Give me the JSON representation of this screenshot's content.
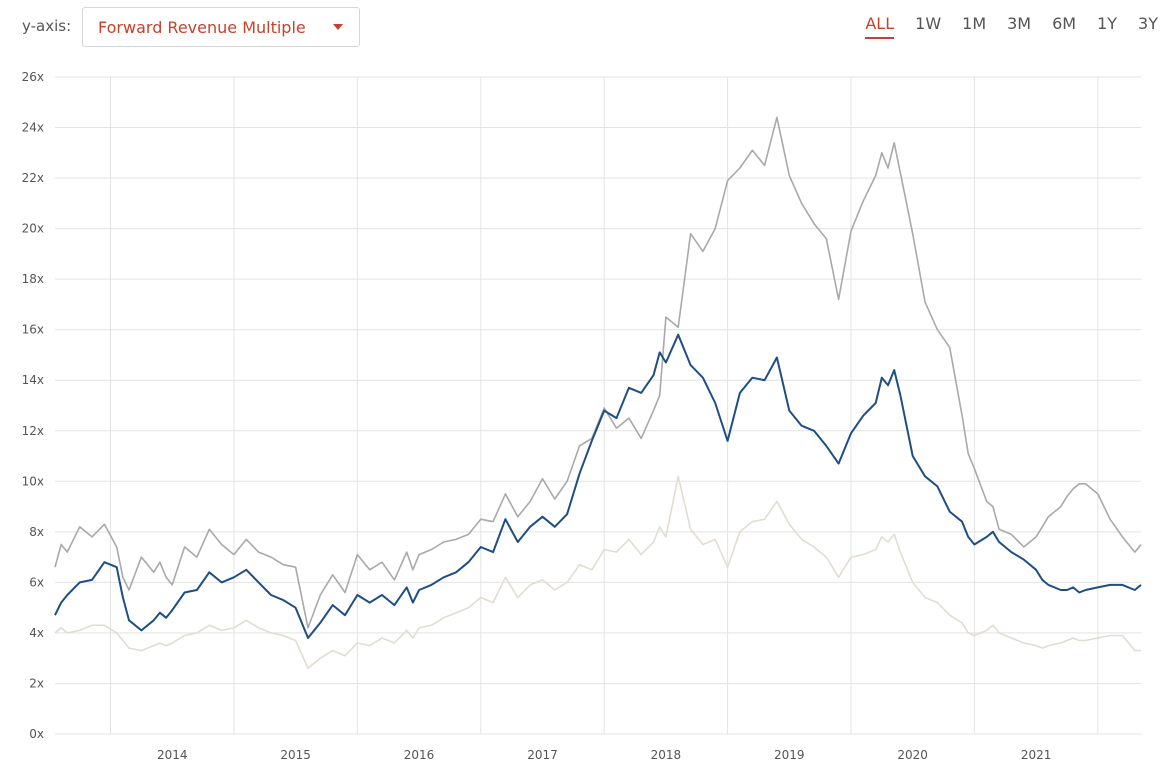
{
  "toolbar": {
    "yaxis_label": "y-axis:",
    "metric_selected": "Forward Revenue Multiple",
    "ranges": [
      "ALL",
      "1W",
      "1M",
      "3M",
      "6M",
      "1Y",
      "3Y"
    ],
    "active_range": "ALL"
  },
  "colors": {
    "accent": "#c8412b",
    "series_main": "#1f4e85",
    "series_upper": "#a9a9a9",
    "series_lower": "#e2dcd3",
    "grid": "#e3e3e3"
  },
  "chart_data": {
    "type": "line",
    "title": "",
    "xlabel": "",
    "ylabel": "",
    "ylim": [
      0,
      26
    ],
    "xlim": [
      2013.05,
      2021.85
    ],
    "grid": true,
    "y_ticks": [
      0,
      2,
      4,
      6,
      8,
      10,
      12,
      14,
      16,
      18,
      20,
      22,
      24,
      26
    ],
    "y_tick_suffix": "x",
    "x_ticks": [
      "2014",
      "2015",
      "2016",
      "2017",
      "2018",
      "2019",
      "2020",
      "2021"
    ],
    "series": [
      {
        "key": "upper",
        "x": [
          2013.05,
          2013.1,
          2013.15,
          2013.25,
          2013.35,
          2013.45,
          2013.55,
          2013.6,
          2013.65,
          2013.75,
          2013.85,
          2013.9,
          2013.95,
          2014.0,
          2014.1,
          2014.2,
          2014.3,
          2014.4,
          2014.5,
          2014.6,
          2014.7,
          2014.8,
          2014.9,
          2015.0,
          2015.1,
          2015.2,
          2015.3,
          2015.4,
          2015.5,
          2015.6,
          2015.7,
          2015.8,
          2015.9,
          2015.95,
          2016.0,
          2016.1,
          2016.2,
          2016.3,
          2016.4,
          2016.5,
          2016.6,
          2016.7,
          2016.8,
          2016.9,
          2017.0,
          2017.1,
          2017.2,
          2017.3,
          2017.4,
          2017.5,
          2017.6,
          2017.7,
          2017.8,
          2017.9,
          2017.95,
          2018.0,
          2018.1,
          2018.2,
          2018.3,
          2018.4,
          2018.5,
          2018.6,
          2018.7,
          2018.8,
          2018.9,
          2019.0,
          2019.1,
          2019.2,
          2019.3,
          2019.4,
          2019.5,
          2019.6,
          2019.7,
          2019.75,
          2019.8,
          2019.85,
          2019.9,
          2020.0,
          2020.1,
          2020.2,
          2020.3,
          2020.4,
          2020.45,
          2020.5,
          2020.6,
          2020.65,
          2020.7,
          2020.8,
          2020.9,
          2021.0,
          2021.05,
          2021.1,
          2021.2,
          2021.25,
          2021.3,
          2021.35,
          2021.4,
          2021.5,
          2021.6,
          2021.7,
          2021.8,
          2021.85
        ],
        "y": [
          6.6,
          7.5,
          7.2,
          8.2,
          7.8,
          8.3,
          7.4,
          6.2,
          5.7,
          7.0,
          6.4,
          6.8,
          6.2,
          5.9,
          7.4,
          7.0,
          8.1,
          7.5,
          7.1,
          7.7,
          7.2,
          7.0,
          6.7,
          6.6,
          4.2,
          5.5,
          6.3,
          5.6,
          7.1,
          6.5,
          6.8,
          6.1,
          7.2,
          6.5,
          7.1,
          7.3,
          7.6,
          7.7,
          7.9,
          8.5,
          8.4,
          9.5,
          8.6,
          9.2,
          10.1,
          9.3,
          10.0,
          11.4,
          11.7,
          12.9,
          12.1,
          12.5,
          11.7,
          12.8,
          13.4,
          16.5,
          16.1,
          19.8,
          19.1,
          20.0,
          21.9,
          22.4,
          23.1,
          22.5,
          24.4,
          22.1,
          21.0,
          20.2,
          19.6,
          17.2,
          19.9,
          21.1,
          22.1,
          23.0,
          22.4,
          23.4,
          22.2,
          19.8,
          17.1,
          16.0,
          15.3,
          12.6,
          11.1,
          10.5,
          9.2,
          9.0,
          8.1,
          7.9,
          7.4,
          7.8,
          8.2,
          8.6,
          9.0,
          9.4,
          9.7,
          9.9,
          9.9,
          9.5,
          8.5,
          7.8,
          7.2,
          7.5
        ]
      },
      {
        "key": "main",
        "x": [
          2013.05,
          2013.1,
          2013.15,
          2013.25,
          2013.35,
          2013.45,
          2013.55,
          2013.6,
          2013.65,
          2013.75,
          2013.85,
          2013.9,
          2013.95,
          2014.0,
          2014.1,
          2014.2,
          2014.3,
          2014.4,
          2014.5,
          2014.6,
          2014.7,
          2014.8,
          2014.9,
          2015.0,
          2015.1,
          2015.2,
          2015.3,
          2015.4,
          2015.5,
          2015.6,
          2015.7,
          2015.8,
          2015.9,
          2015.95,
          2016.0,
          2016.1,
          2016.2,
          2016.3,
          2016.4,
          2016.5,
          2016.6,
          2016.7,
          2016.8,
          2016.9,
          2017.0,
          2017.1,
          2017.2,
          2017.3,
          2017.4,
          2017.5,
          2017.6,
          2017.7,
          2017.8,
          2017.9,
          2017.95,
          2018.0,
          2018.1,
          2018.2,
          2018.3,
          2018.4,
          2018.5,
          2018.6,
          2018.7,
          2018.8,
          2018.9,
          2019.0,
          2019.1,
          2019.2,
          2019.3,
          2019.4,
          2019.5,
          2019.6,
          2019.7,
          2019.75,
          2019.8,
          2019.85,
          2019.9,
          2020.0,
          2020.1,
          2020.2,
          2020.3,
          2020.4,
          2020.45,
          2020.5,
          2020.6,
          2020.65,
          2020.7,
          2020.8,
          2020.9,
          2021.0,
          2021.05,
          2021.1,
          2021.2,
          2021.25,
          2021.3,
          2021.35,
          2021.4,
          2021.5,
          2021.6,
          2021.7,
          2021.8,
          2021.85
        ],
        "y": [
          4.7,
          5.2,
          5.5,
          6.0,
          6.1,
          6.8,
          6.6,
          5.4,
          4.5,
          4.1,
          4.5,
          4.8,
          4.6,
          4.9,
          5.6,
          5.7,
          6.4,
          6.0,
          6.2,
          6.5,
          6.0,
          5.5,
          5.3,
          5.0,
          3.8,
          4.4,
          5.1,
          4.7,
          5.5,
          5.2,
          5.5,
          5.1,
          5.8,
          5.2,
          5.7,
          5.9,
          6.2,
          6.4,
          6.8,
          7.4,
          7.2,
          8.5,
          7.6,
          8.2,
          8.6,
          8.2,
          8.7,
          10.3,
          11.6,
          12.8,
          12.5,
          13.7,
          13.5,
          14.2,
          15.1,
          14.7,
          15.8,
          14.6,
          14.1,
          13.1,
          11.6,
          13.5,
          14.1,
          14.0,
          14.9,
          12.8,
          12.2,
          12.0,
          11.4,
          10.7,
          11.9,
          12.6,
          13.1,
          14.1,
          13.8,
          14.4,
          13.4,
          11.0,
          10.2,
          9.8,
          8.8,
          8.4,
          7.8,
          7.5,
          7.8,
          8.0,
          7.6,
          7.2,
          6.9,
          6.5,
          6.1,
          5.9,
          5.7,
          5.7,
          5.8,
          5.6,
          5.7,
          5.8,
          5.9,
          5.9,
          5.7,
          5.9
        ]
      },
      {
        "key": "lower",
        "x": [
          2013.05,
          2013.1,
          2013.15,
          2013.25,
          2013.35,
          2013.45,
          2013.55,
          2013.6,
          2013.65,
          2013.75,
          2013.85,
          2013.9,
          2013.95,
          2014.0,
          2014.1,
          2014.2,
          2014.3,
          2014.4,
          2014.5,
          2014.6,
          2014.7,
          2014.8,
          2014.9,
          2015.0,
          2015.1,
          2015.2,
          2015.3,
          2015.4,
          2015.5,
          2015.6,
          2015.7,
          2015.8,
          2015.9,
          2015.95,
          2016.0,
          2016.1,
          2016.2,
          2016.3,
          2016.4,
          2016.5,
          2016.6,
          2016.7,
          2016.8,
          2016.9,
          2017.0,
          2017.1,
          2017.2,
          2017.3,
          2017.4,
          2017.5,
          2017.6,
          2017.7,
          2017.8,
          2017.9,
          2017.95,
          2018.0,
          2018.1,
          2018.2,
          2018.3,
          2018.4,
          2018.5,
          2018.6,
          2018.7,
          2018.8,
          2018.9,
          2019.0,
          2019.1,
          2019.2,
          2019.3,
          2019.4,
          2019.5,
          2019.6,
          2019.7,
          2019.75,
          2019.8,
          2019.85,
          2019.9,
          2020.0,
          2020.1,
          2020.2,
          2020.3,
          2020.4,
          2020.45,
          2020.5,
          2020.6,
          2020.65,
          2020.7,
          2020.8,
          2020.9,
          2021.0,
          2021.05,
          2021.1,
          2021.2,
          2021.25,
          2021.3,
          2021.35,
          2021.4,
          2021.5,
          2021.6,
          2021.7,
          2021.8,
          2021.85
        ],
        "y": [
          4.0,
          4.2,
          4.0,
          4.1,
          4.3,
          4.3,
          4.0,
          3.7,
          3.4,
          3.3,
          3.5,
          3.6,
          3.5,
          3.6,
          3.9,
          4.0,
          4.3,
          4.1,
          4.2,
          4.5,
          4.2,
          4.0,
          3.9,
          3.7,
          2.6,
          3.0,
          3.3,
          3.1,
          3.6,
          3.5,
          3.8,
          3.6,
          4.1,
          3.8,
          4.2,
          4.3,
          4.6,
          4.8,
          5.0,
          5.4,
          5.2,
          6.2,
          5.4,
          5.9,
          6.1,
          5.7,
          6.0,
          6.7,
          6.5,
          7.3,
          7.2,
          7.7,
          7.1,
          7.6,
          8.2,
          7.8,
          10.2,
          8.1,
          7.5,
          7.7,
          6.6,
          8.0,
          8.4,
          8.5,
          9.2,
          8.3,
          7.7,
          7.4,
          7.0,
          6.2,
          7.0,
          7.1,
          7.3,
          7.8,
          7.6,
          7.9,
          7.2,
          6.0,
          5.4,
          5.2,
          4.7,
          4.4,
          4.0,
          3.9,
          4.1,
          4.3,
          4.0,
          3.8,
          3.6,
          3.5,
          3.4,
          3.5,
          3.6,
          3.7,
          3.8,
          3.7,
          3.7,
          3.8,
          3.9,
          3.9,
          3.3,
          3.3
        ]
      }
    ]
  }
}
